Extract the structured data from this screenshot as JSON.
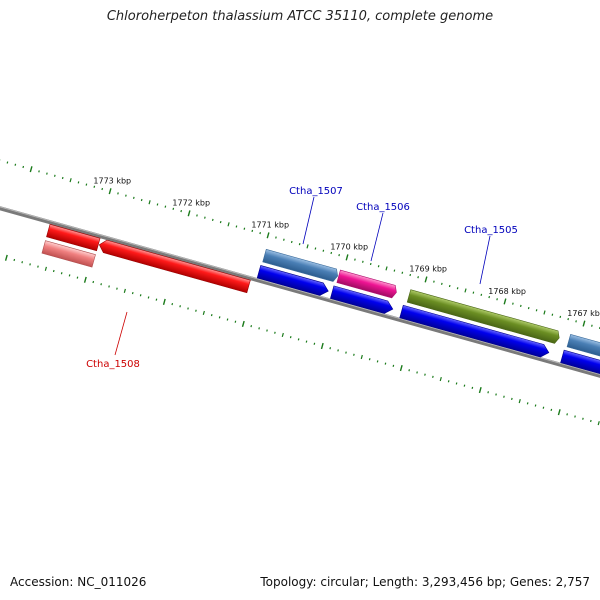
{
  "title": "Chloroherpeton thalassium ATCC 35110, complete genome",
  "footer": {
    "accession": "Accession: NC_011026",
    "summary": "Topology: circular; Length: 3,293,456 bp; Genes: 2,757"
  },
  "ruler": {
    "ticks": [
      "1773 kbp",
      "1772 kbp",
      "1771 kbp",
      "1770 kbp",
      "1769 kbp",
      "1768 kbp",
      "1767 kbp"
    ]
  },
  "genes": {
    "labels": [
      "Ctha_1507",
      "Ctha_1506",
      "Ctha_1505",
      "Ctha_1508"
    ]
  },
  "colors": {
    "backbone": "#808080",
    "tick": "#1a7a1a",
    "red": "#ee0000",
    "pink": "#f08080",
    "steelblue": "#4a7fb5",
    "blue": "#0000ee",
    "magenta": "#ee1493",
    "olive": "#6b8e23",
    "label_blue": "#0000bb",
    "label_red": "#cc0000"
  }
}
